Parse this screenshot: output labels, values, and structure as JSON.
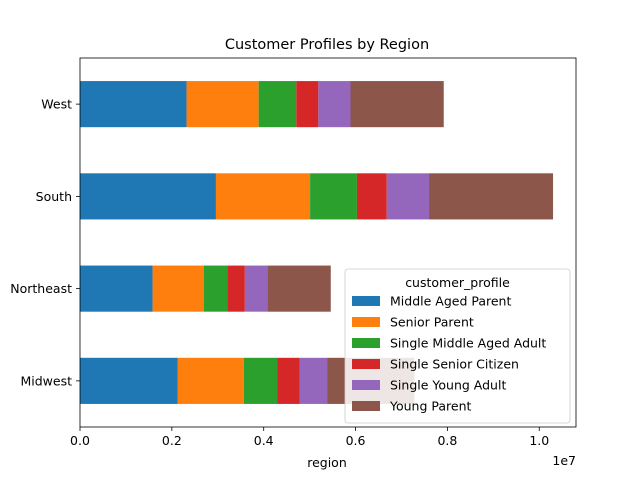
{
  "chart_data": {
    "type": "bar",
    "orientation": "horizontal",
    "stacked": true,
    "title": "Customer Profiles by Region",
    "xlabel": "region",
    "ylabel": "",
    "x_scale_label": "1e7",
    "xlim": [
      0,
      10800000.0
    ],
    "x_ticks": [
      0,
      2000000,
      4000000,
      6000000,
      8000000,
      10000000
    ],
    "x_tick_labels": [
      "0.0",
      "0.2",
      "0.4",
      "0.6",
      "0.8",
      "1.0"
    ],
    "categories": [
      "Midwest",
      "Northeast",
      "South",
      "West"
    ],
    "legend_title": "customer_profile",
    "legend_position": "lower-right",
    "grid": false,
    "series": [
      {
        "name": "Middle Aged Parent",
        "color": "#1f77b4",
        "values": [
          2130000,
          1580000,
          2960000,
          2320000
        ]
      },
      {
        "name": "Senior Parent",
        "color": "#ff7f0e",
        "values": [
          1440000,
          1120000,
          2050000,
          1570000
        ]
      },
      {
        "name": "Single Middle Aged Adult",
        "color": "#2ca02c",
        "values": [
          730000,
          510000,
          1020000,
          820000
        ]
      },
      {
        "name": "Single Senior Citizen",
        "color": "#d62728",
        "values": [
          480000,
          380000,
          650000,
          480000
        ]
      },
      {
        "name": "Single Young Adult",
        "color": "#9467bd",
        "values": [
          600000,
          490000,
          920000,
          700000
        ]
      },
      {
        "name": "Young Parent",
        "color": "#8c564b",
        "values": [
          1900000,
          1380000,
          2700000,
          2030000
        ]
      }
    ]
  }
}
